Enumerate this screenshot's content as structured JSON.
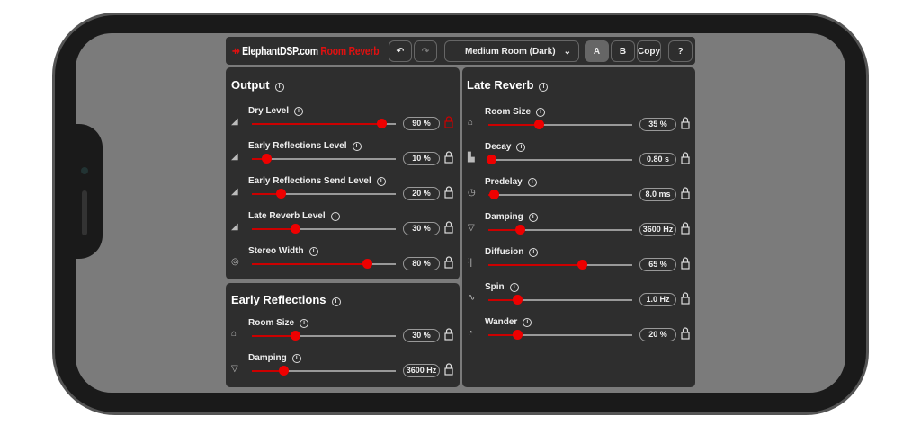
{
  "header": {
    "brand": "ElephantDSP.com",
    "product": "Room Reverb",
    "preset": "Medium Room (Dark)",
    "a": "A",
    "b": "B",
    "copy": "Copy",
    "help": "?"
  },
  "colors": {
    "accent": "#e00000",
    "panel": "#2e2e2e"
  },
  "output": {
    "title": "Output",
    "rows": [
      {
        "label": "Dry Level",
        "value": "90 %",
        "position": 0.9,
        "icon": "level-icon",
        "locked": true
      },
      {
        "label": "Early Reflections Level",
        "value": "10 %",
        "position": 0.1,
        "icon": "level-icon"
      },
      {
        "label": "Early Reflections Send Level",
        "value": "20 %",
        "position": 0.2,
        "icon": "level-icon"
      },
      {
        "label": "Late Reverb Level",
        "value": "30 %",
        "position": 0.3,
        "icon": "level-icon"
      },
      {
        "label": "Stereo Width",
        "value": "80 %",
        "position": 0.8,
        "icon": "stereo-icon"
      }
    ]
  },
  "early": {
    "title": "Early Reflections",
    "rows": [
      {
        "label": "Room Size",
        "value": "30 %",
        "position": 0.3,
        "icon": "house-icon"
      },
      {
        "label": "Damping",
        "value": "3600 Hz",
        "position": 0.22,
        "icon": "filter-icon"
      }
    ]
  },
  "late": {
    "title": "Late Reverb",
    "rows": [
      {
        "label": "Room Size",
        "value": "35 %",
        "position": 0.35,
        "icon": "house-icon"
      },
      {
        "label": "Decay",
        "value": "0.80 s",
        "position": 0.02,
        "icon": "decay-icon"
      },
      {
        "label": "Predelay",
        "value": "8.0 ms",
        "position": 0.04,
        "icon": "timer-icon"
      },
      {
        "label": "Damping",
        "value": "3600 Hz",
        "position": 0.22,
        "icon": "filter-icon"
      },
      {
        "label": "Diffusion",
        "value": "65 %",
        "position": 0.65,
        "icon": "diffusion-icon"
      },
      {
        "label": "Spin",
        "value": "1.0 Hz",
        "position": 0.2,
        "icon": "sine-icon"
      },
      {
        "label": "Wander",
        "value": "20 %",
        "position": 0.2,
        "icon": "gauge-icon"
      }
    ]
  }
}
